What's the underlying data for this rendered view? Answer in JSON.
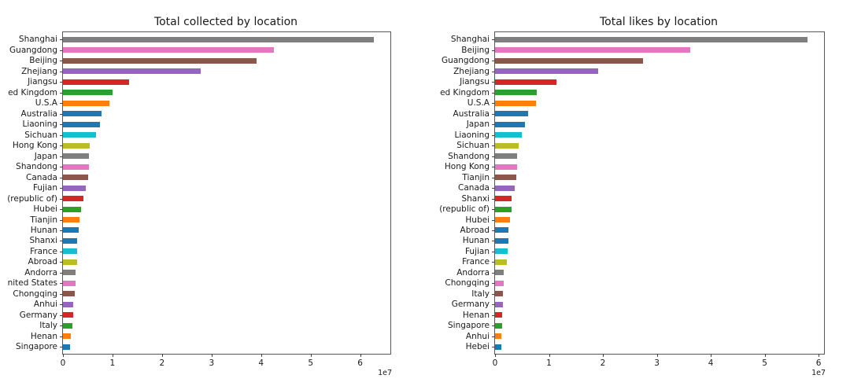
{
  "figure": {
    "background": "#ffffff",
    "text_color": "#1a1a1a",
    "spine_color": "#585858"
  },
  "palette": {
    "blue": "#1f77b4",
    "orange": "#ff7f0e",
    "green": "#2ca02c",
    "red": "#d62728",
    "purple": "#9467bd",
    "brown": "#8c564b",
    "pink": "#e377c2",
    "gray": "#7f7f7f",
    "olive": "#bcbd22",
    "cyan": "#17becf"
  },
  "chart_data": [
    {
      "type": "bar",
      "orientation": "horizontal",
      "title": "Total collected by location",
      "xlabel": "",
      "ylabel": "",
      "grid": false,
      "legend": false,
      "x_scale_label": "1e7",
      "xlim": [
        0,
        66100000
      ],
      "x_ticks": [
        0,
        10000000,
        20000000,
        30000000,
        40000000,
        50000000,
        60000000
      ],
      "x_tick_labels": [
        "0",
        "1",
        "2",
        "3",
        "4",
        "5",
        "6"
      ],
      "categories": [
        "Shanghai",
        "Guangdong",
        "Beijing",
        "Zhejiang",
        "Jiangsu",
        "ed Kingdom",
        "U.S.A",
        "Australia",
        "Liaoning",
        "Sichuan",
        "Hong Kong",
        "Japan",
        "Shandong",
        "Canada",
        "Fujian",
        "(republic of)",
        "Hubei",
        "Tianjin",
        "Hunan",
        "Shanxi",
        "France",
        "Abroad",
        "Andorra",
        "nited States",
        "Chongqing",
        "Anhui",
        "Germany",
        "Italy",
        "Henan",
        "Singapore"
      ],
      "values": [
        62800000,
        42500000,
        39100000,
        27800000,
        13400000,
        10000000,
        9300000,
        7700000,
        7400000,
        6700000,
        5400000,
        5300000,
        5200000,
        5000000,
        4650000,
        4200000,
        3650000,
        3300000,
        3200000,
        2900000,
        2860000,
        2800000,
        2550000,
        2500000,
        2330000,
        2100000,
        2050000,
        1900000,
        1650000,
        1430000
      ],
      "bar_colors": [
        "#7f7f7f",
        "#e377c2",
        "#8c564b",
        "#9467bd",
        "#d62728",
        "#2ca02c",
        "#ff7f0e",
        "#1f77b4",
        "#1f77b4",
        "#17becf",
        "#bcbd22",
        "#7f7f7f",
        "#e377c2",
        "#8c564b",
        "#9467bd",
        "#d62728",
        "#2ca02c",
        "#ff7f0e",
        "#1f77b4",
        "#1f77b4",
        "#17becf",
        "#bcbd22",
        "#7f7f7f",
        "#e377c2",
        "#8c564b",
        "#9467bd",
        "#d62728",
        "#2ca02c",
        "#ff7f0e",
        "#1f77b4"
      ]
    },
    {
      "type": "bar",
      "orientation": "horizontal",
      "title": "Total likes by location",
      "xlabel": "",
      "ylabel": "",
      "grid": false,
      "legend": false,
      "x_scale_label": "1e7",
      "xlim": [
        0,
        61000000
      ],
      "x_ticks": [
        0,
        10000000,
        20000000,
        30000000,
        40000000,
        50000000,
        60000000
      ],
      "x_tick_labels": [
        "0",
        "1",
        "2",
        "3",
        "4",
        "5",
        "6"
      ],
      "categories": [
        "Shanghai",
        "Beijing",
        "Guangdong",
        "Zhejiang",
        "Jiangsu",
        "ed Kingdom",
        "U.S.A",
        "Australia",
        "Japan",
        "Liaoning",
        "Sichuan",
        "Shandong",
        "Hong Kong",
        "Tianjin",
        "Canada",
        "Shanxi",
        "(republic of)",
        "Hubei",
        "Abroad",
        "Hunan",
        "Fujian",
        "France",
        "Andorra",
        "Chongqing",
        "Italy",
        "Germany",
        "Henan",
        "Singapore",
        "Anhui",
        "Hebei"
      ],
      "values": [
        57900000,
        36200000,
        27500000,
        19100000,
        11400000,
        7800000,
        7600000,
        6100000,
        5500000,
        4900000,
        4400000,
        4150000,
        4100000,
        4000000,
        3600000,
        3100000,
        3000000,
        2700000,
        2500000,
        2480000,
        2400000,
        2200000,
        1560000,
        1550000,
        1420000,
        1400000,
        1310000,
        1270000,
        1230000,
        1120000
      ],
      "bar_colors": [
        "#7f7f7f",
        "#e377c2",
        "#8c564b",
        "#9467bd",
        "#d62728",
        "#2ca02c",
        "#ff7f0e",
        "#1f77b4",
        "#1f77b4",
        "#17becf",
        "#bcbd22",
        "#7f7f7f",
        "#e377c2",
        "#8c564b",
        "#9467bd",
        "#d62728",
        "#2ca02c",
        "#ff7f0e",
        "#1f77b4",
        "#1f77b4",
        "#17becf",
        "#bcbd22",
        "#7f7f7f",
        "#e377c2",
        "#8c564b",
        "#9467bd",
        "#d62728",
        "#2ca02c",
        "#ff7f0e",
        "#1f77b4"
      ]
    }
  ]
}
